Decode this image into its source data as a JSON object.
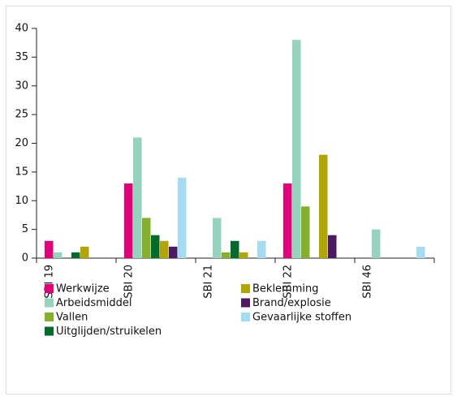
{
  "chart_data": {
    "type": "bar",
    "categories": [
      "SBI 19",
      "SBI 20",
      "SBI 21",
      "SBI 22",
      "SBI 46"
    ],
    "series": [
      {
        "name": "Werkwijze",
        "color": "#e0007a",
        "values": [
          3,
          13,
          0,
          13,
          0
        ]
      },
      {
        "name": "Arbeidsmiddel",
        "color": "#95d3be",
        "values": [
          1,
          21,
          7,
          38,
          5
        ]
      },
      {
        "name": "Vallen",
        "color": "#84b02c",
        "values": [
          0,
          7,
          1,
          9,
          0
        ]
      },
      {
        "name": "Uitglijden/struikelen",
        "color": "#006b2d",
        "values": [
          1,
          4,
          3,
          0,
          0
        ]
      },
      {
        "name": "Beklemming",
        "color": "#b1a600",
        "values": [
          2,
          3,
          1,
          18,
          0
        ]
      },
      {
        "name": "Brand/explosie",
        "color": "#4b1a63",
        "values": [
          0,
          2,
          0,
          4,
          0
        ]
      },
      {
        "name": "Gevaarlijke stoffen",
        "color": "#a6dcf2",
        "values": [
          0,
          14,
          3,
          0,
          2
        ]
      }
    ],
    "ylim": [
      0,
      40
    ],
    "yticks": [
      0,
      5,
      10,
      15,
      20,
      25,
      30,
      35,
      40
    ]
  }
}
